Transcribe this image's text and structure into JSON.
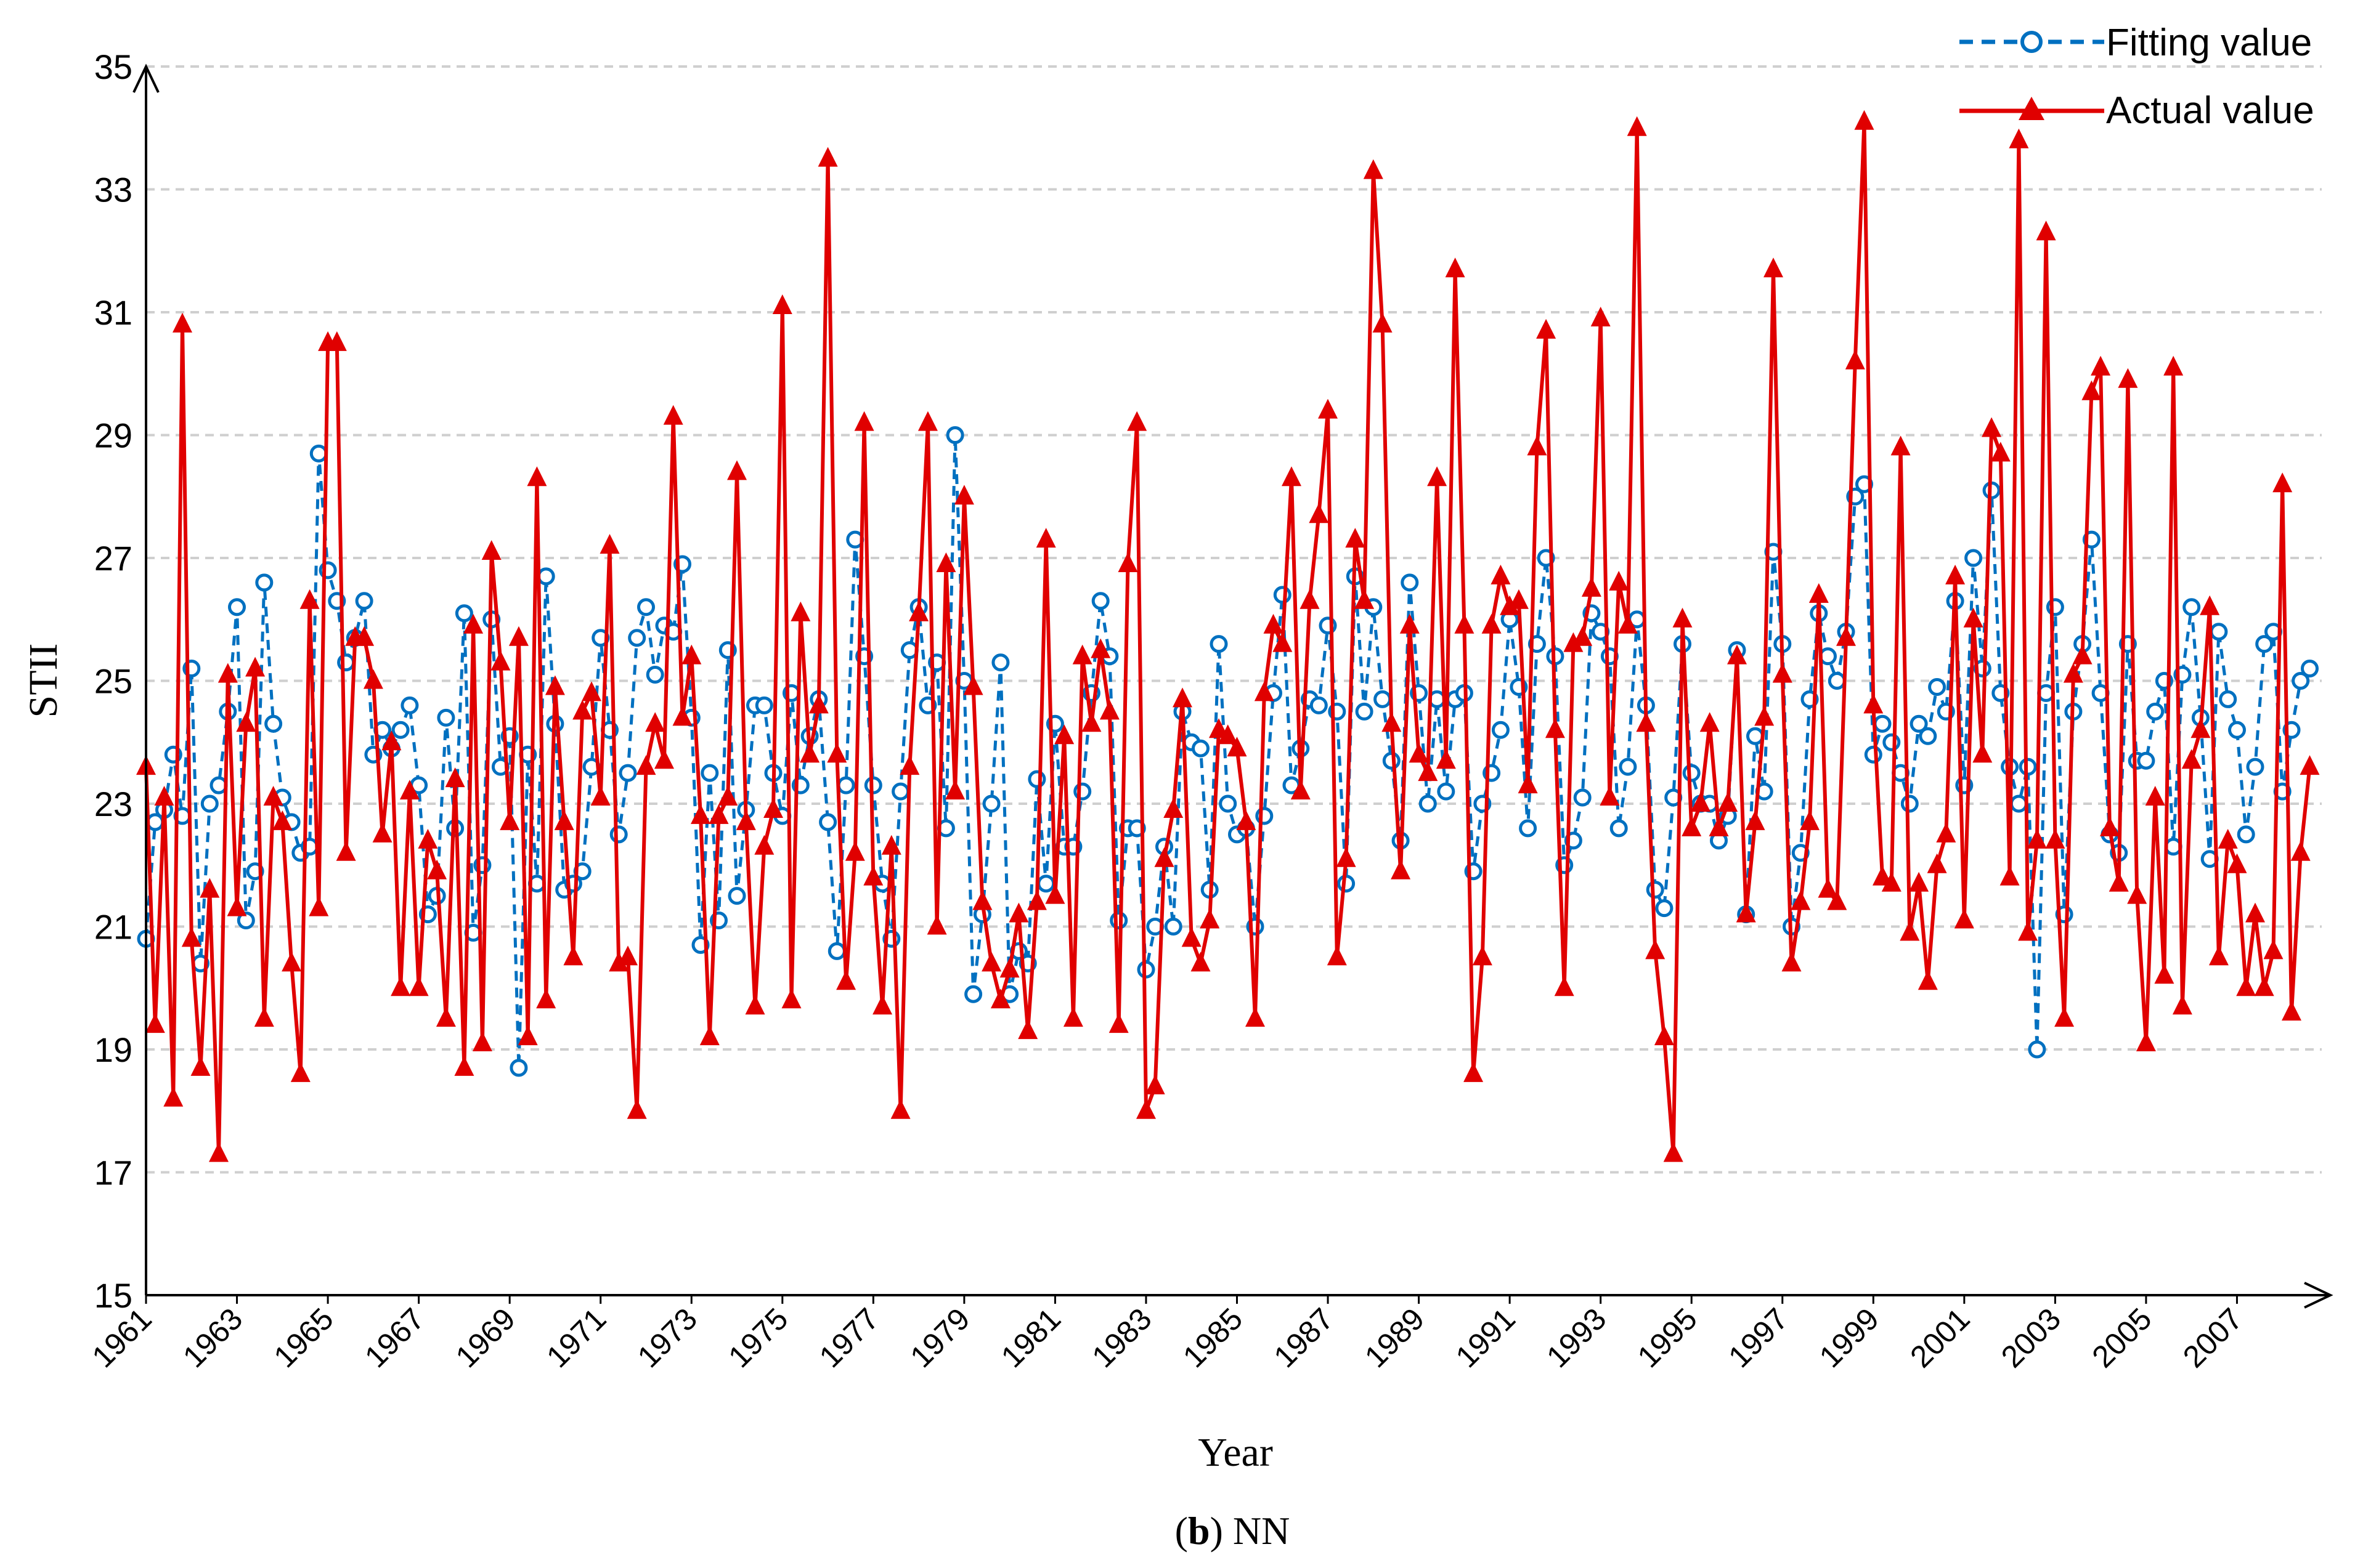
{
  "chart_data": {
    "type": "line",
    "title": "",
    "caption_letter": "b",
    "caption_text": " NN",
    "caption_open": "(",
    "caption_close": ")",
    "xlabel": "Year",
    "ylabel": "STII",
    "ylim": [
      15,
      35
    ],
    "yticks": [
      15,
      17,
      19,
      21,
      23,
      25,
      27,
      29,
      31,
      33,
      35
    ],
    "xticks": [
      "1961",
      "1963",
      "1965",
      "1967",
      "1969",
      "1971",
      "1973",
      "1975",
      "1977",
      "1979",
      "1981",
      "1983",
      "1985",
      "1987",
      "1989",
      "1991",
      "1993",
      "1995",
      "1997",
      "1999",
      "2001",
      "2003",
      "2005",
      "2007"
    ],
    "x_start_year": 1961,
    "x_end_year": 2009,
    "points_per_year": 5,
    "grid": true,
    "legend_position": "top-right",
    "series": [
      {
        "name": "Fitting value",
        "color": "#0070C0",
        "style": "dashed",
        "marker": "circle",
        "values": [
          20.8,
          22.7,
          22.9,
          23.8,
          22.8,
          25.2,
          20.4,
          23.0,
          23.3,
          24.5,
          26.2,
          21.1,
          21.9,
          26.6,
          24.3,
          23.1,
          22.7,
          22.2,
          22.3,
          28.7,
          26.8,
          26.3,
          25.3,
          25.7,
          26.3,
          23.8,
          24.2,
          23.9,
          24.2,
          24.6,
          23.3,
          21.2,
          21.5,
          24.4,
          22.6,
          26.1,
          20.9,
          22.0,
          26.0,
          23.6,
          24.1,
          18.7,
          23.8,
          21.7,
          26.7,
          24.3,
          21.6,
          21.7,
          21.9,
          23.6,
          25.7,
          24.2,
          22.5,
          23.5,
          25.7,
          26.2,
          25.1,
          25.9,
          25.8,
          26.9,
          24.4,
          20.7,
          23.5,
          21.1,
          25.5,
          21.5,
          22.9,
          24.6,
          24.6,
          23.5,
          22.8,
          24.8,
          23.3,
          24.1,
          24.7,
          22.7,
          20.6,
          23.3,
          27.3,
          25.4,
          23.3,
          21.7,
          20.8,
          23.2,
          25.5,
          26.2,
          24.6,
          25.3,
          22.6,
          29.0,
          25.0,
          19.9,
          21.2,
          23.0,
          25.3,
          19.9,
          20.6,
          20.4,
          23.4,
          21.7,
          24.3,
          22.3,
          22.3,
          23.2,
          24.8,
          26.3,
          25.4,
          21.1,
          22.6,
          22.6,
          20.3,
          21.0,
          22.3,
          21.0,
          24.5,
          24.0,
          23.9,
          21.6,
          25.6,
          23.0,
          22.5,
          22.6,
          21.0,
          22.8,
          24.8,
          26.4,
          23.3,
          23.9,
          24.7,
          24.6,
          25.9,
          24.5,
          21.7,
          26.7,
          24.5,
          26.2,
          24.7,
          23.7,
          22.4,
          26.6,
          24.8,
          23.0,
          24.7,
          23.2,
          24.7,
          24.8,
          21.9,
          23.0,
          23.5,
          24.2,
          26.0,
          24.9,
          22.6,
          25.6,
          27.0,
          25.4,
          22.0,
          22.4,
          23.1,
          26.1,
          25.8,
          25.4,
          22.6,
          23.6,
          26.0,
          24.6,
          21.6,
          21.3,
          23.1,
          25.6,
          23.5,
          23.0,
          23.0,
          22.4,
          22.8,
          25.5,
          21.2,
          24.1,
          23.2,
          27.1,
          25.6,
          21.0,
          22.2,
          24.7,
          26.1,
          25.4,
          25.0,
          25.8,
          28.0,
          28.2,
          23.8,
          24.3,
          24.0,
          23.5,
          23.0,
          24.3,
          24.1,
          24.9,
          24.5,
          26.3,
          23.3,
          27.0,
          25.2,
          28.1,
          24.8,
          23.6,
          23.0,
          23.6,
          19.0,
          24.8,
          26.2,
          21.2,
          24.5,
          25.6,
          27.3,
          24.8,
          22.5,
          22.2,
          25.6,
          23.7,
          23.7,
          24.5,
          25.0,
          22.3,
          25.1,
          26.2,
          24.4,
          22.1,
          25.8,
          24.7,
          24.2,
          22.5,
          23.6,
          25.6,
          25.8,
          23.2,
          24.2,
          25.0,
          25.2
        ]
      },
      {
        "name": "Actual value",
        "color": "#E00000",
        "style": "solid",
        "marker": "triangle",
        "values": [
          23.6,
          19.4,
          23.1,
          18.2,
          30.8,
          20.8,
          18.7,
          21.6,
          17.3,
          25.1,
          21.3,
          24.3,
          25.2,
          19.5,
          23.1,
          22.7,
          20.4,
          18.6,
          26.3,
          21.3,
          30.5,
          30.5,
          22.2,
          25.7,
          25.7,
          25.0,
          22.5,
          24.0,
          20.0,
          23.2,
          20.0,
          22.4,
          21.9,
          19.5,
          23.4,
          18.7,
          25.9,
          19.1,
          27.1,
          25.3,
          22.7,
          25.7,
          19.2,
          28.3,
          19.8,
          24.9,
          22.7,
          20.5,
          24.5,
          24.8,
          23.1,
          27.2,
          20.4,
          20.5,
          18.0,
          23.6,
          24.3,
          23.7,
          29.3,
          24.4,
          25.4,
          22.8,
          19.2,
          22.8,
          23.1,
          28.4,
          22.7,
          19.7,
          22.3,
          22.9,
          31.1,
          19.8,
          26.1,
          23.8,
          24.6,
          33.5,
          23.8,
          20.1,
          22.2,
          29.2,
          21.8,
          19.7,
          22.3,
          18.0,
          23.6,
          26.1,
          29.2,
          21.0,
          26.9,
          23.2,
          28.0,
          24.9,
          21.4,
          20.4,
          19.8,
          20.3,
          21.2,
          19.3,
          21.4,
          27.3,
          21.5,
          24.1,
          19.5,
          25.4,
          24.3,
          25.5,
          24.5,
          19.4,
          26.9,
          29.2,
          18.0,
          18.4,
          22.1,
          22.9,
          24.7,
          20.8,
          20.4,
          21.1,
          24.2,
          24.1,
          23.9,
          22.7,
          19.5,
          24.8,
          25.9,
          25.6,
          28.3,
          23.2,
          26.3,
          27.7,
          29.4,
          20.5,
          22.1,
          27.3,
          26.3,
          33.3,
          30.8,
          24.3,
          21.9,
          25.9,
          23.8,
          23.5,
          28.3,
          23.7,
          31.7,
          25.9,
          18.6,
          20.5,
          25.9,
          26.7,
          26.2,
          26.3,
          23.3,
          28.8,
          30.7,
          24.2,
          20.0,
          25.6,
          25.7,
          26.5,
          30.9,
          23.1,
          26.6,
          25.9,
          34.0,
          24.3,
          20.6,
          19.2,
          17.3,
          26.0,
          22.6,
          23.0,
          24.3,
          22.6,
          23.0,
          25.4,
          21.2,
          22.7,
          24.4,
          31.7,
          25.1,
          20.4,
          21.4,
          22.7,
          26.4,
          21.6,
          21.4,
          25.7,
          30.2,
          34.1,
          24.6,
          21.8,
          21.7,
          28.8,
          20.9,
          21.7,
          20.1,
          22.0,
          22.5,
          26.7,
          21.1,
          26.0,
          23.8,
          29.1,
          28.7,
          21.8,
          33.8,
          20.9,
          22.4,
          32.3,
          22.4,
          19.5,
          25.1,
          25.4,
          29.7,
          30.1,
          22.6,
          21.7,
          29.9,
          21.5,
          19.1,
          23.1,
          20.2,
          30.1,
          19.7,
          23.7,
          24.2,
          26.2,
          20.5,
          22.4,
          22.0,
          20.0,
          21.2,
          20.0,
          20.6,
          28.2,
          19.6,
          22.2,
          23.6
        ]
      }
    ]
  }
}
